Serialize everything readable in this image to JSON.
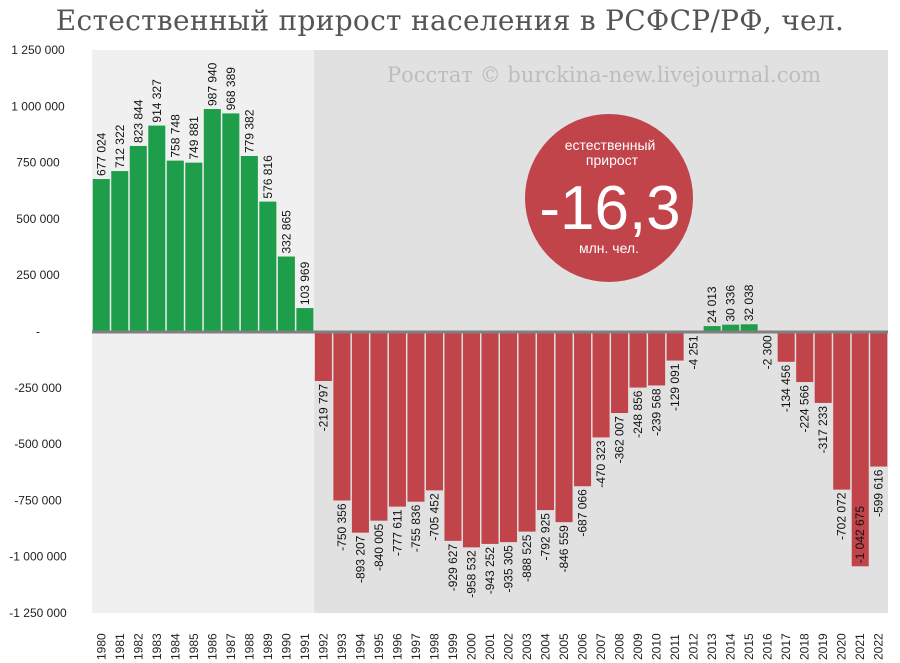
{
  "chart_data": {
    "type": "bar",
    "title": "Естественный прирост населения в РСФСР/РФ, чел.",
    "xlabel": "",
    "ylabel": "",
    "ylim": [
      -1250000,
      1250000
    ],
    "yticks": [
      1250000,
      1000000,
      750000,
      500000,
      250000,
      0,
      -250000,
      -500000,
      -750000,
      -1000000,
      -1250000
    ],
    "ytick_labels": [
      "1 250 000",
      "1 000 000",
      "750 000",
      "500 000",
      "250 000",
      "-",
      "-250 000",
      "-500 000",
      "-750 000",
      "-1 000 000",
      "-1 250 000"
    ],
    "categories": [
      "1980",
      "1981",
      "1982",
      "1983",
      "1984",
      "1985",
      "1986",
      "1987",
      "1988",
      "1989",
      "1990",
      "1991",
      "1992",
      "1993",
      "1994",
      "1995",
      "1996",
      "1997",
      "1998",
      "1999",
      "2000",
      "2001",
      "2002",
      "2003",
      "2004",
      "2005",
      "2006",
      "2007",
      "2008",
      "2009",
      "2010",
      "2011",
      "2012",
      "2013",
      "2014",
      "2015",
      "2016",
      "2017",
      "2018",
      "2019",
      "2020",
      "2021",
      "2022"
    ],
    "values": [
      677024,
      712322,
      823844,
      914327,
      758748,
      749881,
      987940,
      968389,
      779382,
      576816,
      332865,
      103969,
      -219797,
      -750356,
      -893207,
      -840005,
      -777611,
      -755836,
      -705452,
      -929627,
      -958532,
      -943252,
      -935305,
      -888525,
      -792925,
      -846559,
      -687066,
      -470323,
      -362007,
      -248856,
      -239568,
      -129091,
      -4251,
      24013,
      30336,
      32038,
      -2300,
      -134456,
      -224566,
      -317233,
      -702072,
      -1042675,
      -599616
    ],
    "value_labels": [
      "677 024",
      "712 322",
      "823 844",
      "914 327",
      "758 748",
      "749 881",
      "987 940",
      "968 389",
      "779 382",
      "576 816",
      "332 865",
      "103 969",
      "-219 797",
      "-750 356",
      "-893 207",
      "-840 005",
      "-777 611",
      "-755 836",
      "-705 452",
      "-929 627",
      "-958 532",
      "-943 252",
      "-935 305",
      "-888 525",
      "-792 925",
      "-846 559",
      "-687 066",
      "-470 323",
      "-362 007",
      "-248 856",
      "-239 568",
      "-129 091",
      "-4 251",
      "24 013",
      "30 336",
      "32 038",
      "-2 300",
      "-134 456",
      "-224 566",
      "-317 233",
      "-702 072",
      "-1 042 675",
      "-599 616"
    ],
    "colors": {
      "positive": "#1e9e4a",
      "negative": "#c0444a",
      "bg_soviet": "#f0f0f0",
      "bg_russia": "#e1e1e1",
      "axis": "#808080"
    },
    "shaded_periods": [
      {
        "from": "1980",
        "to": "1991",
        "color": "#f0f0f0"
      },
      {
        "from": "1992",
        "to": "2022",
        "color": "#e1e1e1"
      }
    ],
    "annotations": {
      "watermark": "Росстат © burckina-new.livejournal.com",
      "badge": {
        "top_text": "естественный прирост",
        "value": "-16,3",
        "bottom_text": "млн. чел.",
        "color": "#c0444a"
      }
    },
    "grid": false,
    "legend": "none"
  }
}
